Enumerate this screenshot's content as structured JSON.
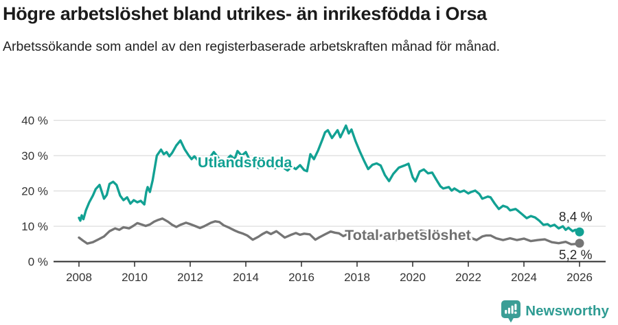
{
  "header": {
    "title": "Högre arbetslöshet bland utrikes- än inrikesfödda i Orsa",
    "subtitle": "Arbetssökande som andel av den registerbaserade arbetskraften månad för månad."
  },
  "chart_data": {
    "type": "line",
    "x_axis": {
      "tick_years": [
        2008,
        2010,
        2012,
        2014,
        2016,
        2018,
        2020,
        2022,
        2024,
        2026
      ],
      "range": [
        2008,
        2026
      ],
      "grid": false
    },
    "y_axis": {
      "tick_values": [
        0,
        10,
        20,
        30,
        40
      ],
      "tick_labels": [
        "0 %",
        "10 %",
        "20 %",
        "30 %",
        "40 %"
      ],
      "range": [
        0,
        42
      ],
      "unit": "%",
      "grid": true
    },
    "colors": {
      "grid": "#dcdcdc",
      "axis": "#2b2b2b",
      "tick_text": "#333333",
      "end_label_text": "#2a2a2a"
    },
    "series": [
      {
        "name": "Utlandsfödda",
        "color": "#12A193",
        "end_label": "8,4 %",
        "end_value": 8.4,
        "end_label_above": true,
        "label_x": 2012.27,
        "label_y": 26.7,
        "points": [
          [
            2008.0,
            12.4
          ],
          [
            2008.05,
            11.6
          ],
          [
            2008.1,
            13.1
          ],
          [
            2008.16,
            12.0
          ],
          [
            2008.25,
            14.5
          ],
          [
            2008.37,
            16.8
          ],
          [
            2008.5,
            18.7
          ],
          [
            2008.6,
            20.5
          ],
          [
            2008.74,
            21.7
          ],
          [
            2008.9,
            17.8
          ],
          [
            2009.0,
            18.9
          ],
          [
            2009.1,
            22.0
          ],
          [
            2009.23,
            22.6
          ],
          [
            2009.35,
            21.7
          ],
          [
            2009.48,
            18.7
          ],
          [
            2009.6,
            17.4
          ],
          [
            2009.73,
            18.2
          ],
          [
            2009.85,
            16.4
          ],
          [
            2009.97,
            17.4
          ],
          [
            2010.1,
            16.8
          ],
          [
            2010.22,
            17.2
          ],
          [
            2010.35,
            16.2
          ],
          [
            2010.42,
            19.7
          ],
          [
            2010.47,
            21.1
          ],
          [
            2010.55,
            19.7
          ],
          [
            2010.65,
            23.0
          ],
          [
            2010.8,
            30.0
          ],
          [
            2010.95,
            31.7
          ],
          [
            2011.05,
            30.4
          ],
          [
            2011.15,
            31.0
          ],
          [
            2011.25,
            29.8
          ],
          [
            2011.35,
            30.8
          ],
          [
            2011.5,
            32.9
          ],
          [
            2011.65,
            34.3
          ],
          [
            2011.8,
            31.8
          ],
          [
            2011.95,
            30.0
          ],
          [
            2012.05,
            29.0
          ],
          [
            2012.15,
            29.8
          ],
          [
            2012.3,
            28.5
          ],
          [
            2012.45,
            27.0
          ],
          [
            2012.6,
            28.3
          ],
          [
            2012.85,
            31.0
          ],
          [
            2013.0,
            29.5
          ],
          [
            2013.15,
            27.8
          ],
          [
            2013.3,
            28.8
          ],
          [
            2013.45,
            30.0
          ],
          [
            2013.6,
            29.0
          ],
          [
            2013.7,
            31.3
          ],
          [
            2013.85,
            30.0
          ],
          [
            2014.0,
            31.0
          ],
          [
            2014.15,
            28.5
          ],
          [
            2014.3,
            27.3
          ],
          [
            2014.45,
            26.5
          ],
          [
            2014.6,
            27.8
          ],
          [
            2014.75,
            28.6
          ],
          [
            2014.9,
            27.2
          ],
          [
            2015.05,
            26.4
          ],
          [
            2015.2,
            27.2
          ],
          [
            2015.35,
            26.6
          ],
          [
            2015.5,
            25.8
          ],
          [
            2015.65,
            26.9
          ],
          [
            2015.8,
            26.2
          ],
          [
            2015.95,
            27.3
          ],
          [
            2016.1,
            25.9
          ],
          [
            2016.2,
            25.6
          ],
          [
            2016.32,
            30.4
          ],
          [
            2016.45,
            29.0
          ],
          [
            2016.6,
            31.5
          ],
          [
            2016.75,
            34.5
          ],
          [
            2016.85,
            36.6
          ],
          [
            2016.95,
            37.2
          ],
          [
            2017.1,
            35.0
          ],
          [
            2017.3,
            37.2
          ],
          [
            2017.4,
            35.2
          ],
          [
            2017.6,
            38.5
          ],
          [
            2017.7,
            36.3
          ],
          [
            2017.8,
            37.4
          ],
          [
            2017.95,
            34.0
          ],
          [
            2018.1,
            31.2
          ],
          [
            2018.25,
            28.6
          ],
          [
            2018.4,
            26.2
          ],
          [
            2018.55,
            27.4
          ],
          [
            2018.7,
            27.8
          ],
          [
            2018.85,
            27.2
          ],
          [
            2019.0,
            24.5
          ],
          [
            2019.15,
            22.8
          ],
          [
            2019.3,
            24.8
          ],
          [
            2019.5,
            26.6
          ],
          [
            2019.7,
            27.2
          ],
          [
            2019.85,
            27.7
          ],
          [
            2020.0,
            23.9
          ],
          [
            2020.1,
            22.7
          ],
          [
            2020.25,
            25.5
          ],
          [
            2020.4,
            26.1
          ],
          [
            2020.55,
            25.0
          ],
          [
            2020.7,
            25.2
          ],
          [
            2020.85,
            23.2
          ],
          [
            2021.0,
            21.3
          ],
          [
            2021.1,
            20.7
          ],
          [
            2021.3,
            21.1
          ],
          [
            2021.4,
            20.1
          ],
          [
            2021.5,
            20.7
          ],
          [
            2021.7,
            19.7
          ],
          [
            2021.85,
            20.1
          ],
          [
            2022.0,
            19.3
          ],
          [
            2022.1,
            19.7
          ],
          [
            2022.25,
            20.1
          ],
          [
            2022.4,
            19.1
          ],
          [
            2022.5,
            17.8
          ],
          [
            2022.7,
            18.4
          ],
          [
            2022.8,
            18.2
          ],
          [
            2022.95,
            16.4
          ],
          [
            2023.1,
            14.9
          ],
          [
            2023.25,
            15.8
          ],
          [
            2023.4,
            15.4
          ],
          [
            2023.5,
            14.5
          ],
          [
            2023.7,
            14.9
          ],
          [
            2023.8,
            14.3
          ],
          [
            2023.95,
            13.3
          ],
          [
            2024.1,
            12.3
          ],
          [
            2024.25,
            12.9
          ],
          [
            2024.4,
            12.5
          ],
          [
            2024.55,
            11.6
          ],
          [
            2024.7,
            10.4
          ],
          [
            2024.85,
            10.6
          ],
          [
            2024.95,
            10.0
          ],
          [
            2025.1,
            10.4
          ],
          [
            2025.25,
            9.4
          ],
          [
            2025.4,
            10.0
          ],
          [
            2025.5,
            9.0
          ],
          [
            2025.6,
            9.6
          ],
          [
            2025.75,
            8.6
          ],
          [
            2025.85,
            9.0
          ],
          [
            2026.0,
            8.4
          ]
        ]
      },
      {
        "name": "Total arbetslöshet",
        "color": "#757575",
        "label_color": "#6f6f6f",
        "end_label": "5,2 %",
        "end_value": 5.2,
        "end_label_above": false,
        "label_x": 2017.56,
        "label_y": 6.1,
        "points": [
          [
            2008.0,
            6.8
          ],
          [
            2008.15,
            5.9
          ],
          [
            2008.3,
            5.1
          ],
          [
            2008.5,
            5.5
          ],
          [
            2008.7,
            6.3
          ],
          [
            2008.9,
            7.1
          ],
          [
            2009.1,
            8.6
          ],
          [
            2009.3,
            9.4
          ],
          [
            2009.45,
            9.0
          ],
          [
            2009.6,
            9.7
          ],
          [
            2009.8,
            9.4
          ],
          [
            2009.95,
            10.1
          ],
          [
            2010.1,
            10.9
          ],
          [
            2010.25,
            10.5
          ],
          [
            2010.4,
            10.1
          ],
          [
            2010.55,
            10.5
          ],
          [
            2010.7,
            11.3
          ],
          [
            2010.85,
            11.8
          ],
          [
            2011.0,
            12.2
          ],
          [
            2011.2,
            11.3
          ],
          [
            2011.35,
            10.4
          ],
          [
            2011.5,
            9.8
          ],
          [
            2011.65,
            10.4
          ],
          [
            2011.85,
            11.0
          ],
          [
            2012.0,
            10.6
          ],
          [
            2012.2,
            10.0
          ],
          [
            2012.35,
            9.5
          ],
          [
            2012.5,
            10.0
          ],
          [
            2012.75,
            11.0
          ],
          [
            2012.9,
            11.4
          ],
          [
            2013.05,
            11.2
          ],
          [
            2013.2,
            10.3
          ],
          [
            2013.4,
            9.6
          ],
          [
            2013.6,
            8.8
          ],
          [
            2013.75,
            8.3
          ],
          [
            2013.9,
            7.9
          ],
          [
            2014.05,
            7.4
          ],
          [
            2014.25,
            6.2
          ],
          [
            2014.45,
            7.0
          ],
          [
            2014.6,
            7.8
          ],
          [
            2014.75,
            8.4
          ],
          [
            2014.9,
            7.8
          ],
          [
            2015.1,
            8.6
          ],
          [
            2015.25,
            7.7
          ],
          [
            2015.4,
            6.8
          ],
          [
            2015.6,
            7.5
          ],
          [
            2015.8,
            8.1
          ],
          [
            2015.95,
            7.6
          ],
          [
            2016.1,
            7.9
          ],
          [
            2016.3,
            7.7
          ],
          [
            2016.5,
            6.2
          ],
          [
            2016.65,
            6.9
          ],
          [
            2016.85,
            7.7
          ],
          [
            2017.05,
            8.5
          ],
          [
            2017.2,
            8.2
          ],
          [
            2017.35,
            8.0
          ],
          [
            2017.5,
            7.2
          ],
          [
            2017.65,
            7.7
          ],
          [
            2017.8,
            8.1
          ],
          [
            2017.95,
            8.3
          ],
          [
            2018.15,
            7.8
          ],
          [
            2018.35,
            7.1
          ],
          [
            2018.5,
            6.6
          ],
          [
            2018.7,
            7.0
          ],
          [
            2018.9,
            7.5
          ],
          [
            2019.1,
            7.0
          ],
          [
            2019.3,
            6.3
          ],
          [
            2019.5,
            6.0
          ],
          [
            2019.7,
            6.5
          ],
          [
            2019.9,
            7.2
          ],
          [
            2020.1,
            8.0
          ],
          [
            2020.3,
            8.8
          ],
          [
            2020.5,
            8.4
          ],
          [
            2020.7,
            8.0
          ],
          [
            2020.9,
            8.3
          ],
          [
            2021.1,
            7.8
          ],
          [
            2021.3,
            7.2
          ],
          [
            2021.5,
            6.8
          ],
          [
            2021.7,
            7.1
          ],
          [
            2021.9,
            6.9
          ],
          [
            2022.1,
            6.7
          ],
          [
            2022.3,
            6.1
          ],
          [
            2022.5,
            7.1
          ],
          [
            2022.65,
            7.4
          ],
          [
            2022.8,
            7.4
          ],
          [
            2023.0,
            6.6
          ],
          [
            2023.25,
            6.1
          ],
          [
            2023.5,
            6.6
          ],
          [
            2023.75,
            6.1
          ],
          [
            2024.0,
            6.5
          ],
          [
            2024.25,
            5.8
          ],
          [
            2024.5,
            6.1
          ],
          [
            2024.75,
            6.3
          ],
          [
            2025.0,
            5.5
          ],
          [
            2025.25,
            5.2
          ],
          [
            2025.5,
            5.6
          ],
          [
            2025.7,
            4.9
          ],
          [
            2025.85,
            5.0
          ],
          [
            2026.0,
            5.2
          ]
        ]
      }
    ]
  },
  "footer": {
    "brand": "Newsworthy",
    "brand_color": "#2f9c93",
    "brand_icon": "bar-chart-speech-bubble",
    "brand_icon_color": "#3b9e96"
  }
}
